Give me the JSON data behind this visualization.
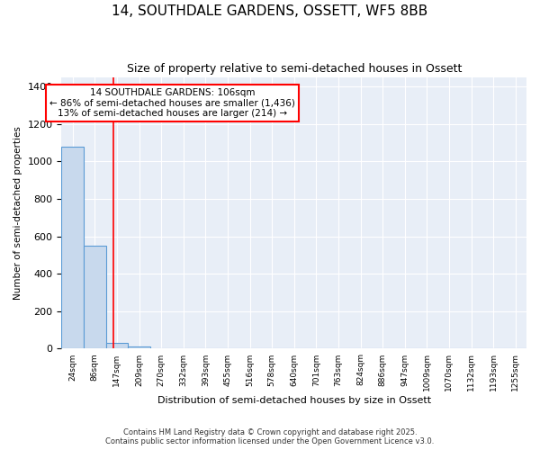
{
  "title1": "14, SOUTHDALE GARDENS, OSSETT, WF5 8BB",
  "title2": "Size of property relative to semi-detached houses in Ossett",
  "xlabel": "Distribution of semi-detached houses by size in Ossett",
  "ylabel": "Number of semi-detached properties",
  "bins": [
    "24sqm",
    "86sqm",
    "147sqm",
    "209sqm",
    "270sqm",
    "332sqm",
    "393sqm",
    "455sqm",
    "516sqm",
    "578sqm",
    "640sqm",
    "701sqm",
    "763sqm",
    "824sqm",
    "886sqm",
    "947sqm",
    "1009sqm",
    "1070sqm",
    "1132sqm",
    "1193sqm",
    "1255sqm"
  ],
  "values": [
    1080,
    550,
    30,
    10,
    0,
    0,
    0,
    0,
    0,
    0,
    0,
    0,
    0,
    0,
    0,
    0,
    0,
    0,
    0,
    0,
    0
  ],
  "bar_color": "#c8d9ed",
  "bar_edge_color": "#5b9bd5",
  "red_line_x": 1.85,
  "annotation_title": "14 SOUTHDALE GARDENS: 106sqm",
  "annotation_line1": "← 86% of semi-detached houses are smaller (1,436)",
  "annotation_line2": "13% of semi-detached houses are larger (214) →",
  "annotation_box_color": "white",
  "annotation_box_edge": "red",
  "ylim": [
    0,
    1450
  ],
  "yticks": [
    0,
    200,
    400,
    600,
    800,
    1000,
    1200,
    1400
  ],
  "background_color": "#e8eef7",
  "grid_color": "white",
  "footnote1": "Contains HM Land Registry data © Crown copyright and database right 2025.",
  "footnote2": "Contains public sector information licensed under the Open Government Licence v3.0."
}
